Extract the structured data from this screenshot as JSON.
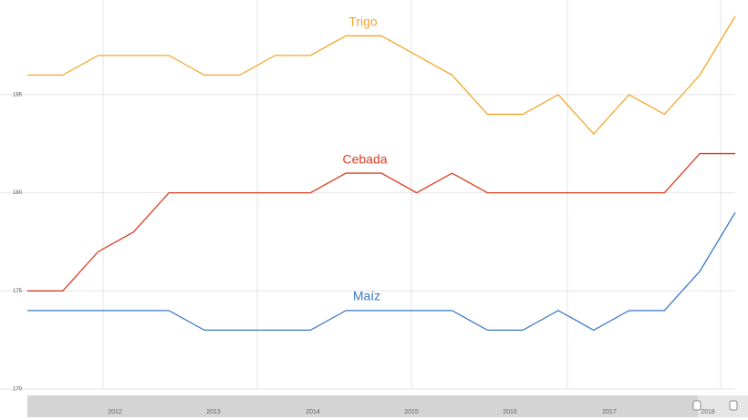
{
  "chart_data": {
    "type": "line",
    "categories": [
      null,
      null,
      null,
      null,
      null,
      null,
      null,
      null,
      null,
      null,
      null,
      null,
      null,
      null,
      null,
      null,
      null,
      null,
      null,
      null,
      null
    ],
    "series": [
      {
        "name": "Trigo",
        "color": "#f3a72c",
        "values": [
          186,
          186,
          187,
          187,
          187,
          186,
          186,
          187,
          187,
          188,
          188,
          187,
          186,
          184,
          184,
          185,
          183,
          185,
          184,
          186,
          189
        ]
      },
      {
        "name": "Cebada",
        "color": "#dd3b22",
        "values": [
          175,
          175,
          177,
          178,
          180,
          180,
          180,
          180,
          180,
          181,
          181,
          180,
          181,
          180,
          180,
          180,
          180,
          180,
          180,
          182,
          182
        ]
      },
      {
        "name": "Maíz",
        "color": "#3a78c2",
        "values": [
          174,
          174,
          174,
          174,
          174,
          173,
          173,
          173,
          173,
          174,
          174,
          174,
          174,
          173,
          173,
          174,
          173,
          174,
          174,
          176,
          179
        ]
      }
    ],
    "ylim": [
      170,
      189.5
    ],
    "yticks": [
      170,
      175,
      180,
      185
    ],
    "grid": true,
    "navigator_labels": [
      "2012",
      "2013",
      "2014",
      "2015",
      "2016",
      "2017",
      "2018"
    ]
  }
}
